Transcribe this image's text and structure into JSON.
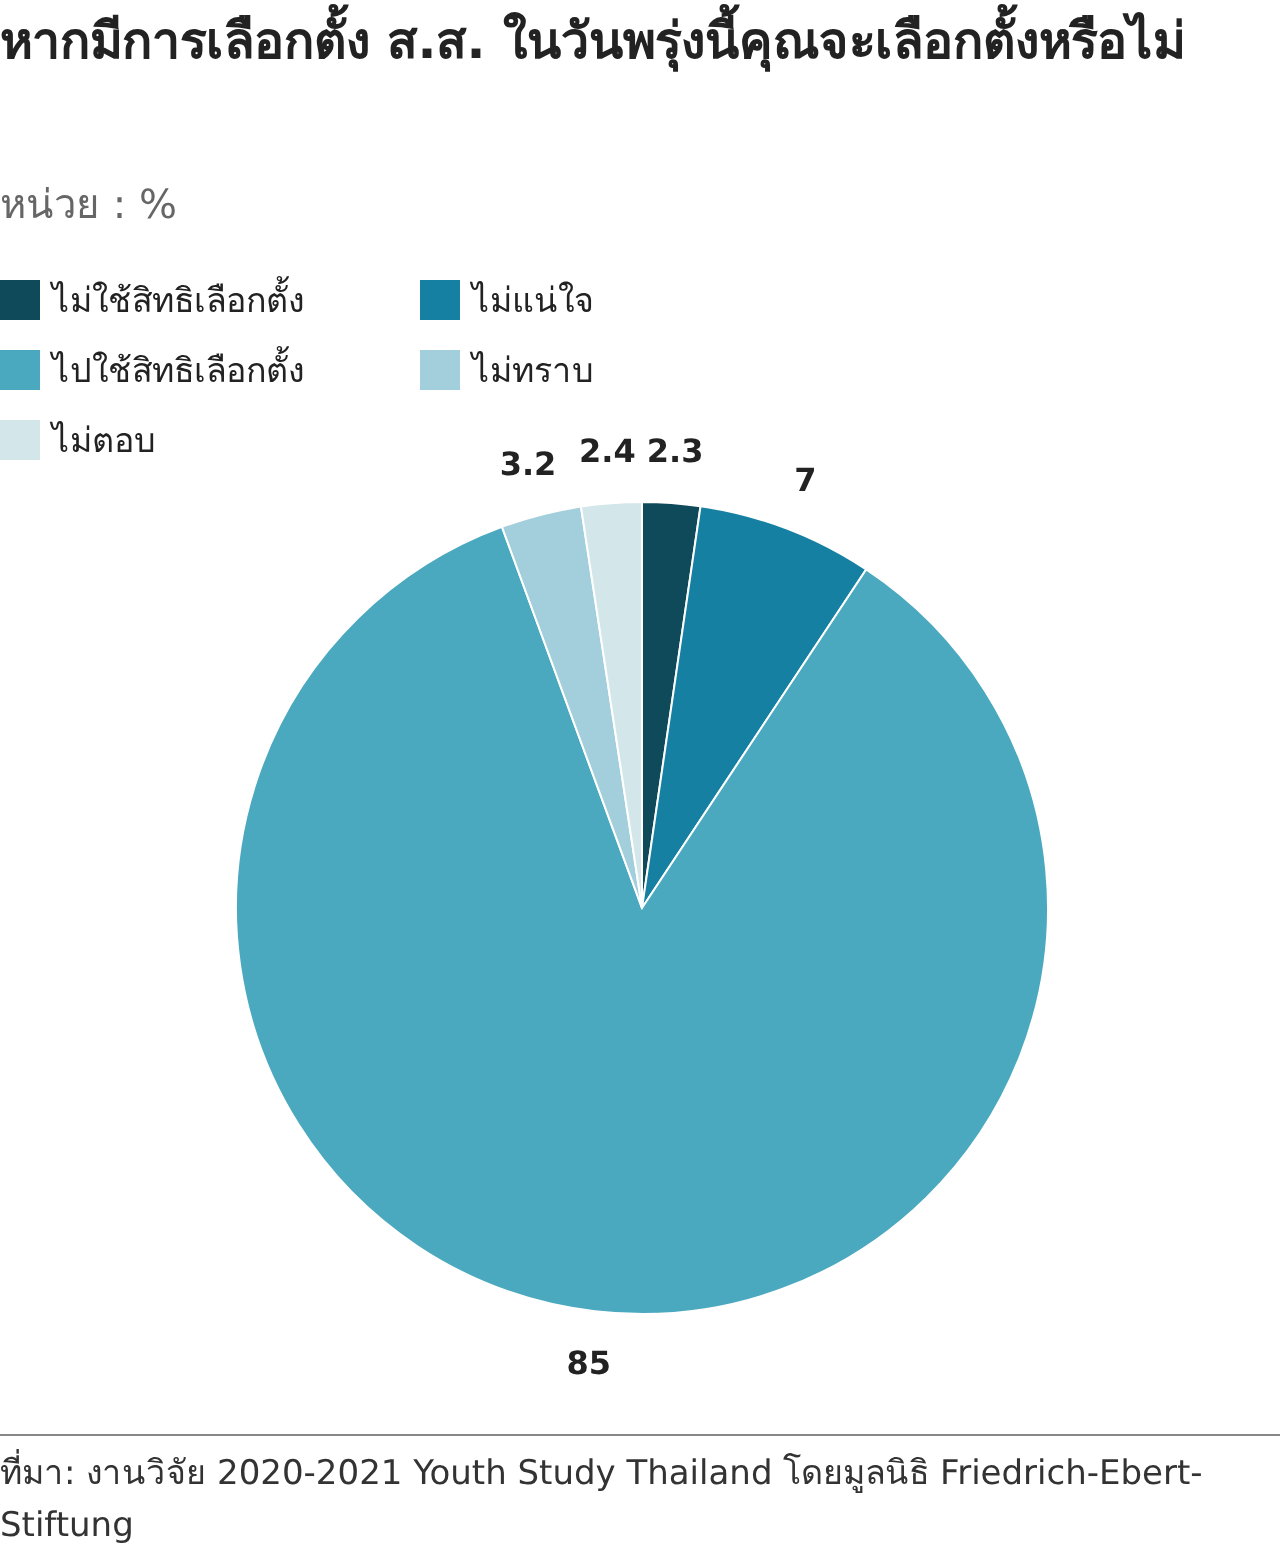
{
  "chart_data": {
    "type": "pie",
    "title": "หากมีการเลือกตั้ง ส.ส. ในวันพรุ่งนี้คุณจะเลือกตั้งหรือไม่",
    "subtitle": "หน่วย : %",
    "categories": [
      "ไม่ใช้สิทธิเลือกตั้ง",
      "ไม่แน่ใจ",
      "ไปใช้สิทธิเลือกตั้ง",
      "ไม่ทราบ",
      "ไม่ตอบ"
    ],
    "values": [
      2.3,
      7,
      85,
      3.2,
      2.4
    ],
    "colors": [
      "#0e4a5a",
      "#1580a2",
      "#4ba9bf",
      "#a2cfdb",
      "#d3e6ea"
    ],
    "data_labels": true,
    "legend": "top",
    "annotations": [
      "ที่มา: งานวิจัย 2020-2021 Youth Study Thailand โดยมูลนิธิ Friedrich-Ebert-Stiftung"
    ]
  }
}
